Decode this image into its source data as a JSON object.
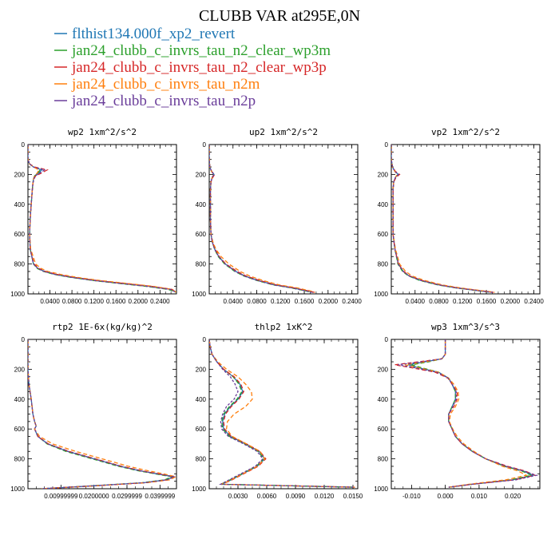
{
  "figure": {
    "title": "CLUBB VAR at295E,0N",
    "legend": [
      {
        "label": "flthist134.000f_xp2_revert",
        "color": "#1f77b4"
      },
      {
        "label": "jan24_clubb_c_invrs_tau_n2_clear_wp3m",
        "color": "#2ca02c"
      },
      {
        "label": "jan24_clubb_c_invrs_tau_n2_clear_wp3p",
        "color": "#d62728"
      },
      {
        "label": "jan24_clubb_c_invrs_tau_n2m",
        "color": "#ff7f0e"
      },
      {
        "label": "jan24_clubb_c_invrs_tau_n2p",
        "color": "#6a3d9a"
      }
    ]
  },
  "chart_data": [
    {
      "type": "line",
      "title": "wp2  1xm^2/s^2",
      "xlim": [
        0,
        0.27
      ],
      "ylim": [
        1000,
        0
      ],
      "xticks": [
        "0.0400",
        "0.0800",
        "0.1200",
        "0.1600",
        "0.2000",
        "0.2400"
      ],
      "xtick_values": [
        0.04,
        0.08,
        0.12,
        0.16,
        0.2,
        0.24
      ],
      "yticks": [
        "0",
        "200",
        "400",
        "600",
        "800",
        "1000"
      ],
      "y": [
        0,
        100,
        130,
        150,
        170,
        190,
        210,
        230,
        260,
        300,
        400,
        500,
        600,
        700,
        800,
        830,
        850,
        870,
        890,
        910,
        930,
        950,
        970,
        990
      ],
      "series": [
        {
          "values": [
            0.0,
            0.0,
            0.003,
            0.01,
            0.025,
            0.02,
            0.012,
            0.01,
            0.009,
            0.008,
            0.006,
            0.004,
            0.003,
            0.004,
            0.01,
            0.018,
            0.03,
            0.05,
            0.08,
            0.12,
            0.17,
            0.22,
            0.26,
            0.27
          ]
        },
        {
          "values": [
            0.0,
            0.0,
            0.003,
            0.01,
            0.022,
            0.018,
            0.012,
            0.01,
            0.009,
            0.008,
            0.006,
            0.004,
            0.003,
            0.004,
            0.01,
            0.017,
            0.028,
            0.048,
            0.078,
            0.118,
            0.165,
            0.215,
            0.255,
            0.27
          ]
        },
        {
          "values": [
            0.0,
            0.0,
            0.003,
            0.012,
            0.035,
            0.025,
            0.014,
            0.011,
            0.009,
            0.008,
            0.006,
            0.004,
            0.003,
            0.004,
            0.011,
            0.02,
            0.032,
            0.053,
            0.085,
            0.125,
            0.175,
            0.225,
            0.262,
            0.27
          ]
        },
        {
          "values": [
            0.0,
            0.0,
            0.003,
            0.01,
            0.02,
            0.017,
            0.012,
            0.01,
            0.009,
            0.008,
            0.006,
            0.004,
            0.003,
            0.005,
            0.014,
            0.024,
            0.036,
            0.06,
            0.09,
            0.13,
            0.18,
            0.228,
            0.262,
            0.27
          ]
        },
        {
          "values": [
            0.0,
            0.0,
            0.003,
            0.01,
            0.03,
            0.022,
            0.013,
            0.011,
            0.009,
            0.008,
            0.006,
            0.004,
            0.003,
            0.004,
            0.01,
            0.018,
            0.029,
            0.05,
            0.08,
            0.12,
            0.168,
            0.218,
            0.258,
            0.27
          ]
        }
      ]
    },
    {
      "type": "line",
      "title": "up2  1xm^2/s^2",
      "xlim": [
        0,
        0.25
      ],
      "ylim": [
        1000,
        0
      ],
      "xticks": [
        "0.0400",
        "0.0800",
        "0.1200",
        "0.1600",
        "0.2000",
        "0.2400"
      ],
      "xtick_values": [
        0.04,
        0.08,
        0.12,
        0.16,
        0.2,
        0.24
      ],
      "yticks": [
        "0",
        "200",
        "400",
        "600",
        "800",
        "1000"
      ],
      "y": [
        0,
        100,
        150,
        180,
        200,
        220,
        250,
        300,
        400,
        500,
        600,
        650,
        700,
        750,
        800,
        850,
        880,
        910,
        940,
        960,
        980,
        990
      ],
      "series": [
        {
          "values": [
            0.0,
            0.0,
            0.001,
            0.004,
            0.008,
            0.005,
            0.003,
            0.002,
            0.002,
            0.002,
            0.003,
            0.005,
            0.009,
            0.016,
            0.027,
            0.045,
            0.06,
            0.082,
            0.11,
            0.14,
            0.165,
            0.175
          ]
        },
        {
          "values": [
            0.0,
            0.0,
            0.001,
            0.004,
            0.008,
            0.005,
            0.003,
            0.002,
            0.002,
            0.002,
            0.003,
            0.005,
            0.009,
            0.015,
            0.026,
            0.043,
            0.058,
            0.08,
            0.108,
            0.138,
            0.162,
            0.172
          ]
        },
        {
          "values": [
            0.0,
            0.0,
            0.001,
            0.004,
            0.009,
            0.006,
            0.003,
            0.002,
            0.002,
            0.002,
            0.003,
            0.005,
            0.01,
            0.017,
            0.028,
            0.047,
            0.062,
            0.085,
            0.113,
            0.143,
            0.167,
            0.177
          ]
        },
        {
          "values": [
            0.0,
            0.0,
            0.001,
            0.004,
            0.007,
            0.005,
            0.003,
            0.002,
            0.002,
            0.002,
            0.003,
            0.006,
            0.011,
            0.02,
            0.033,
            0.052,
            0.068,
            0.09,
            0.118,
            0.148,
            0.17,
            0.178
          ]
        },
        {
          "values": [
            0.0,
            0.0,
            0.001,
            0.004,
            0.008,
            0.005,
            0.003,
            0.002,
            0.002,
            0.002,
            0.003,
            0.005,
            0.009,
            0.016,
            0.027,
            0.044,
            0.059,
            0.081,
            0.109,
            0.139,
            0.163,
            0.173
          ]
        }
      ]
    },
    {
      "type": "line",
      "title": "vp2  1xm^2/s^2",
      "xlim": [
        0,
        0.25
      ],
      "ylim": [
        1000,
        0
      ],
      "xticks": [
        "0.0400",
        "0.0800",
        "0.1200",
        "0.1600",
        "0.2000",
        "0.2400"
      ],
      "xtick_values": [
        0.04,
        0.08,
        0.12,
        0.16,
        0.2,
        0.24
      ],
      "yticks": [
        "0",
        "200",
        "400",
        "600",
        "800",
        "1000"
      ],
      "y": [
        0,
        100,
        150,
        180,
        200,
        220,
        250,
        300,
        400,
        500,
        600,
        700,
        800,
        850,
        880,
        910,
        940,
        960,
        980,
        990
      ],
      "series": [
        {
          "values": [
            0.0,
            0.0,
            0.002,
            0.006,
            0.012,
            0.007,
            0.004,
            0.003,
            0.003,
            0.003,
            0.003,
            0.006,
            0.012,
            0.02,
            0.03,
            0.05,
            0.08,
            0.11,
            0.15,
            0.17
          ]
        },
        {
          "values": [
            0.0,
            0.0,
            0.002,
            0.006,
            0.011,
            0.007,
            0.004,
            0.003,
            0.003,
            0.003,
            0.003,
            0.006,
            0.011,
            0.019,
            0.029,
            0.048,
            0.078,
            0.108,
            0.148,
            0.168
          ]
        },
        {
          "values": [
            0.0,
            0.0,
            0.002,
            0.007,
            0.014,
            0.008,
            0.004,
            0.003,
            0.003,
            0.003,
            0.003,
            0.006,
            0.012,
            0.021,
            0.031,
            0.052,
            0.082,
            0.112,
            0.152,
            0.172
          ]
        },
        {
          "values": [
            0.0,
            0.0,
            0.002,
            0.006,
            0.01,
            0.007,
            0.004,
            0.003,
            0.003,
            0.003,
            0.003,
            0.007,
            0.014,
            0.024,
            0.035,
            0.056,
            0.086,
            0.116,
            0.155,
            0.174
          ]
        },
        {
          "values": [
            0.0,
            0.0,
            0.002,
            0.006,
            0.012,
            0.007,
            0.004,
            0.003,
            0.003,
            0.003,
            0.003,
            0.006,
            0.012,
            0.02,
            0.03,
            0.05,
            0.08,
            0.11,
            0.15,
            0.17
          ]
        }
      ]
    },
    {
      "type": "line",
      "title": "rtp2  1E-6x(kg/kg)^2",
      "xlim": [
        0,
        0.045
      ],
      "ylim": [
        1000,
        0
      ],
      "xticks": [
        "0.00999999",
        "0.0200000",
        "0.0299999",
        "0.0399999"
      ],
      "xtick_values": [
        0.01,
        0.02,
        0.03,
        0.04
      ],
      "yticks": [
        "0",
        "200",
        "400",
        "600",
        "800",
        "1000"
      ],
      "y": [
        0,
        200,
        300,
        400,
        500,
        550,
        580,
        600,
        650,
        700,
        750,
        800,
        850,
        880,
        900,
        920,
        940,
        960,
        980,
        1000
      ],
      "series": [
        {
          "values": [
            0.0,
            0.0,
            0.0003,
            0.001,
            0.0015,
            0.002,
            0.0025,
            0.002,
            0.003,
            0.006,
            0.012,
            0.02,
            0.028,
            0.034,
            0.039,
            0.044,
            0.042,
            0.035,
            0.02,
            0.004
          ]
        },
        {
          "values": [
            0.0,
            0.0,
            0.0003,
            0.001,
            0.0015,
            0.002,
            0.0025,
            0.002,
            0.003,
            0.0058,
            0.0115,
            0.0195,
            0.0275,
            0.0335,
            0.0385,
            0.0435,
            0.0415,
            0.0345,
            0.0195,
            0.004
          ]
        },
        {
          "values": [
            0.0,
            0.0,
            0.0003,
            0.001,
            0.0015,
            0.002,
            0.0025,
            0.002,
            0.003,
            0.0062,
            0.0125,
            0.0205,
            0.0285,
            0.0345,
            0.0395,
            0.0445,
            0.0425,
            0.0355,
            0.0205,
            0.004
          ]
        },
        {
          "values": [
            0.0,
            0.0,
            0.0003,
            0.001,
            0.0015,
            0.002,
            0.0025,
            0.002,
            0.0035,
            0.0075,
            0.0145,
            0.0225,
            0.0305,
            0.0365,
            0.041,
            0.0448,
            0.043,
            0.036,
            0.021,
            0.004
          ]
        },
        {
          "values": [
            0.0,
            0.0,
            0.0003,
            0.001,
            0.0015,
            0.002,
            0.0025,
            0.002,
            0.003,
            0.0061,
            0.0122,
            0.0202,
            0.0282,
            0.0342,
            0.0392,
            0.0442,
            0.0422,
            0.0352,
            0.0202,
            0.004
          ]
        }
      ]
    },
    {
      "type": "line",
      "title": "thlp2  1xK^2",
      "xlim": [
        0,
        0.0155
      ],
      "ylim": [
        1000,
        0
      ],
      "xticks": [
        "0.0030",
        "0.0060",
        "0.0090",
        "0.0120",
        "0.0150"
      ],
      "xtick_values": [
        0.003,
        0.006,
        0.009,
        0.012,
        0.015
      ],
      "yticks": [
        "0",
        "200",
        "400",
        "600",
        "800",
        "1000"
      ],
      "y": [
        0,
        50,
        100,
        150,
        200,
        250,
        300,
        350,
        400,
        450,
        500,
        550,
        600,
        650,
        700,
        750,
        800,
        850,
        900,
        950,
        970,
        990
      ],
      "series": [
        {
          "values": [
            0.0,
            0.0001,
            0.0003,
            0.0008,
            0.0015,
            0.0025,
            0.0032,
            0.0035,
            0.003,
            0.0022,
            0.0016,
            0.0014,
            0.0015,
            0.0022,
            0.0038,
            0.0052,
            0.0058,
            0.005,
            0.0035,
            0.002,
            0.0012,
            0.0152
          ]
        },
        {
          "values": [
            0.0,
            0.0001,
            0.0003,
            0.0008,
            0.0015,
            0.0025,
            0.0031,
            0.0034,
            0.0029,
            0.0021,
            0.0015,
            0.0013,
            0.0014,
            0.0021,
            0.0037,
            0.0051,
            0.0057,
            0.0049,
            0.0034,
            0.0019,
            0.0012,
            0.0152
          ]
        },
        {
          "values": [
            0.0,
            0.0001,
            0.0003,
            0.0008,
            0.0015,
            0.0026,
            0.0033,
            0.0036,
            0.0031,
            0.0023,
            0.0017,
            0.0015,
            0.0016,
            0.0023,
            0.0039,
            0.0053,
            0.0059,
            0.0051,
            0.0036,
            0.0021,
            0.0012,
            0.0152
          ]
        },
        {
          "values": [
            0.0,
            0.0001,
            0.0003,
            0.0009,
            0.0018,
            0.003,
            0.0038,
            0.0044,
            0.0045,
            0.0038,
            0.0026,
            0.0019,
            0.0018,
            0.0024,
            0.0039,
            0.0053,
            0.0058,
            0.005,
            0.0035,
            0.002,
            0.0012,
            0.0152
          ]
        },
        {
          "values": [
            0.0,
            0.0001,
            0.0003,
            0.0008,
            0.0014,
            0.0022,
            0.0027,
            0.003,
            0.0026,
            0.0018,
            0.0014,
            0.0012,
            0.0013,
            0.002,
            0.0036,
            0.005,
            0.0056,
            0.0048,
            0.0033,
            0.0018,
            0.0012,
            0.0152
          ]
        }
      ]
    },
    {
      "type": "line",
      "title": "wp3  1xm^3/s^3",
      "xlim": [
        -0.016,
        0.028
      ],
      "ylim": [
        1000,
        0
      ],
      "xticks": [
        "-0.010",
        "0.000",
        "0.010",
        "0.020"
      ],
      "xtick_values": [
        -0.01,
        0.0,
        0.01,
        0.02
      ],
      "yticks": [
        "0",
        "200",
        "400",
        "600",
        "800",
        "1000"
      ],
      "y": [
        0,
        100,
        130,
        150,
        170,
        190,
        220,
        260,
        300,
        350,
        400,
        450,
        500,
        550,
        600,
        650,
        700,
        750,
        800,
        850,
        880,
        910,
        940,
        970,
        990
      ],
      "series": [
        {
          "values": [
            0.0,
            0.0,
            -0.001,
            -0.006,
            -0.011,
            -0.008,
            -0.002,
            0.001,
            0.002,
            0.003,
            0.003,
            0.002,
            0.001,
            0.001,
            0.002,
            0.003,
            0.005,
            0.008,
            0.012,
            0.018,
            0.023,
            0.026,
            0.02,
            0.008,
            0.001
          ]
        },
        {
          "values": [
            0.0,
            0.0,
            -0.001,
            -0.005,
            -0.01,
            -0.007,
            -0.002,
            0.001,
            0.002,
            0.003,
            0.003,
            0.002,
            0.001,
            0.001,
            0.002,
            0.003,
            0.005,
            0.008,
            0.012,
            0.0175,
            0.0225,
            0.0255,
            0.0195,
            0.008,
            0.001
          ]
        },
        {
          "values": [
            0.0,
            0.0,
            -0.001,
            -0.008,
            -0.015,
            -0.01,
            -0.003,
            0.0008,
            0.002,
            0.0035,
            0.0035,
            0.0025,
            0.001,
            0.001,
            0.002,
            0.003,
            0.005,
            0.008,
            0.012,
            0.0185,
            0.0235,
            0.0265,
            0.0205,
            0.008,
            0.001
          ]
        },
        {
          "values": [
            0.0,
            0.0,
            -0.001,
            -0.006,
            -0.012,
            -0.008,
            -0.002,
            0.001,
            0.0025,
            0.0038,
            0.004,
            0.003,
            0.0015,
            0.0012,
            0.0022,
            0.0035,
            0.0055,
            0.0085,
            0.012,
            0.017,
            0.0215,
            0.024,
            0.018,
            0.007,
            0.001
          ]
        },
        {
          "values": [
            0.0,
            0.0,
            -0.001,
            -0.007,
            -0.014,
            -0.009,
            -0.0025,
            0.0009,
            0.002,
            0.0032,
            0.0032,
            0.0022,
            0.001,
            0.001,
            0.002,
            0.003,
            0.005,
            0.008,
            0.012,
            0.018,
            0.023,
            0.027,
            0.021,
            0.008,
            0.001
          ]
        }
      ]
    }
  ]
}
